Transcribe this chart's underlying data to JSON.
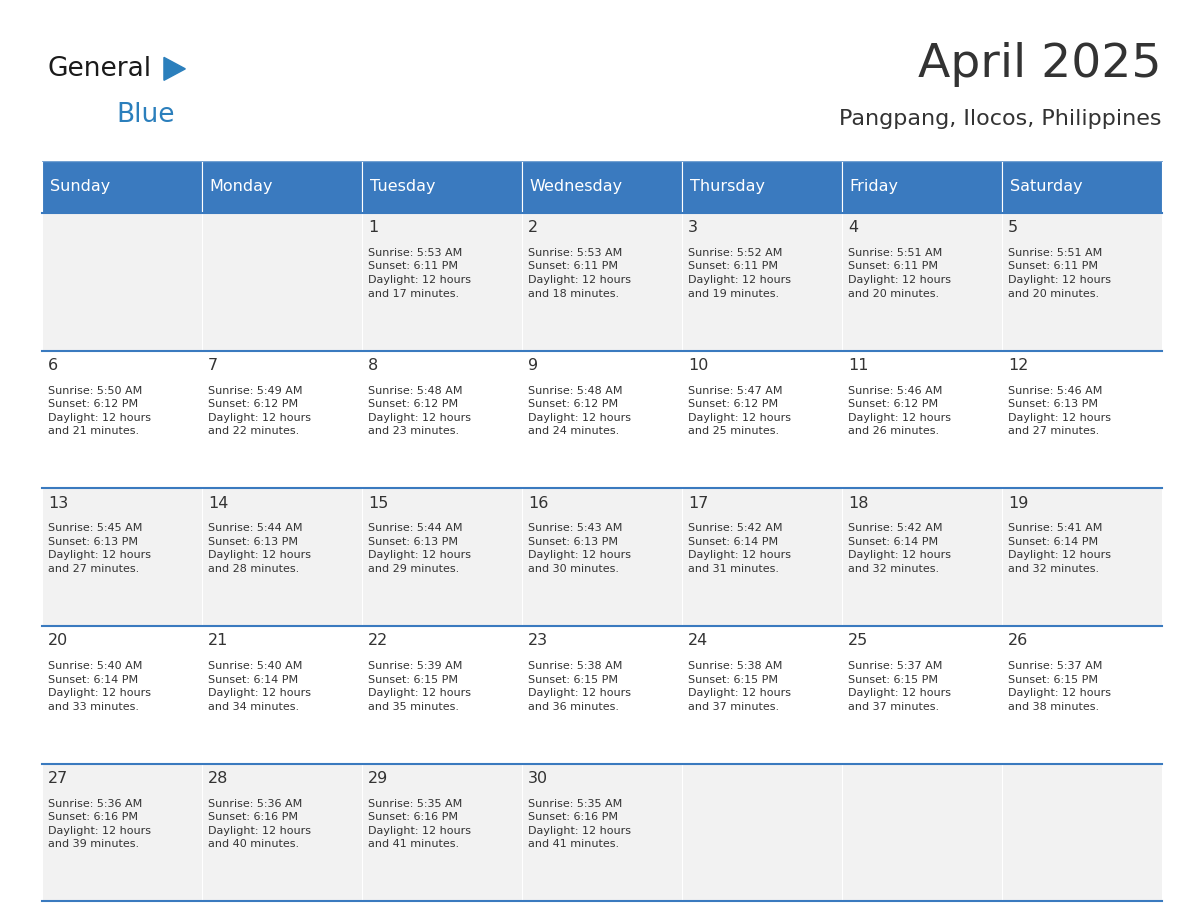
{
  "title": "April 2025",
  "subtitle": "Pangpang, Ilocos, Philippines",
  "header_bg_color": "#3a7abf",
  "header_text_color": "#ffffff",
  "cell_bg_odd": "#f2f2f2",
  "cell_bg_even": "#ffffff",
  "text_color": "#333333",
  "days_of_week": [
    "Sunday",
    "Monday",
    "Tuesday",
    "Wednesday",
    "Thursday",
    "Friday",
    "Saturday"
  ],
  "calendar": [
    [
      {
        "day": "",
        "info": ""
      },
      {
        "day": "",
        "info": ""
      },
      {
        "day": "1",
        "info": "Sunrise: 5:53 AM\nSunset: 6:11 PM\nDaylight: 12 hours\nand 17 minutes."
      },
      {
        "day": "2",
        "info": "Sunrise: 5:53 AM\nSunset: 6:11 PM\nDaylight: 12 hours\nand 18 minutes."
      },
      {
        "day": "3",
        "info": "Sunrise: 5:52 AM\nSunset: 6:11 PM\nDaylight: 12 hours\nand 19 minutes."
      },
      {
        "day": "4",
        "info": "Sunrise: 5:51 AM\nSunset: 6:11 PM\nDaylight: 12 hours\nand 20 minutes."
      },
      {
        "day": "5",
        "info": "Sunrise: 5:51 AM\nSunset: 6:11 PM\nDaylight: 12 hours\nand 20 minutes."
      }
    ],
    [
      {
        "day": "6",
        "info": "Sunrise: 5:50 AM\nSunset: 6:12 PM\nDaylight: 12 hours\nand 21 minutes."
      },
      {
        "day": "7",
        "info": "Sunrise: 5:49 AM\nSunset: 6:12 PM\nDaylight: 12 hours\nand 22 minutes."
      },
      {
        "day": "8",
        "info": "Sunrise: 5:48 AM\nSunset: 6:12 PM\nDaylight: 12 hours\nand 23 minutes."
      },
      {
        "day": "9",
        "info": "Sunrise: 5:48 AM\nSunset: 6:12 PM\nDaylight: 12 hours\nand 24 minutes."
      },
      {
        "day": "10",
        "info": "Sunrise: 5:47 AM\nSunset: 6:12 PM\nDaylight: 12 hours\nand 25 minutes."
      },
      {
        "day": "11",
        "info": "Sunrise: 5:46 AM\nSunset: 6:12 PM\nDaylight: 12 hours\nand 26 minutes."
      },
      {
        "day": "12",
        "info": "Sunrise: 5:46 AM\nSunset: 6:13 PM\nDaylight: 12 hours\nand 27 minutes."
      }
    ],
    [
      {
        "day": "13",
        "info": "Sunrise: 5:45 AM\nSunset: 6:13 PM\nDaylight: 12 hours\nand 27 minutes."
      },
      {
        "day": "14",
        "info": "Sunrise: 5:44 AM\nSunset: 6:13 PM\nDaylight: 12 hours\nand 28 minutes."
      },
      {
        "day": "15",
        "info": "Sunrise: 5:44 AM\nSunset: 6:13 PM\nDaylight: 12 hours\nand 29 minutes."
      },
      {
        "day": "16",
        "info": "Sunrise: 5:43 AM\nSunset: 6:13 PM\nDaylight: 12 hours\nand 30 minutes."
      },
      {
        "day": "17",
        "info": "Sunrise: 5:42 AM\nSunset: 6:14 PM\nDaylight: 12 hours\nand 31 minutes."
      },
      {
        "day": "18",
        "info": "Sunrise: 5:42 AM\nSunset: 6:14 PM\nDaylight: 12 hours\nand 32 minutes."
      },
      {
        "day": "19",
        "info": "Sunrise: 5:41 AM\nSunset: 6:14 PM\nDaylight: 12 hours\nand 32 minutes."
      }
    ],
    [
      {
        "day": "20",
        "info": "Sunrise: 5:40 AM\nSunset: 6:14 PM\nDaylight: 12 hours\nand 33 minutes."
      },
      {
        "day": "21",
        "info": "Sunrise: 5:40 AM\nSunset: 6:14 PM\nDaylight: 12 hours\nand 34 minutes."
      },
      {
        "day": "22",
        "info": "Sunrise: 5:39 AM\nSunset: 6:15 PM\nDaylight: 12 hours\nand 35 minutes."
      },
      {
        "day": "23",
        "info": "Sunrise: 5:38 AM\nSunset: 6:15 PM\nDaylight: 12 hours\nand 36 minutes."
      },
      {
        "day": "24",
        "info": "Sunrise: 5:38 AM\nSunset: 6:15 PM\nDaylight: 12 hours\nand 37 minutes."
      },
      {
        "day": "25",
        "info": "Sunrise: 5:37 AM\nSunset: 6:15 PM\nDaylight: 12 hours\nand 37 minutes."
      },
      {
        "day": "26",
        "info": "Sunrise: 5:37 AM\nSunset: 6:15 PM\nDaylight: 12 hours\nand 38 minutes."
      }
    ],
    [
      {
        "day": "27",
        "info": "Sunrise: 5:36 AM\nSunset: 6:16 PM\nDaylight: 12 hours\nand 39 minutes."
      },
      {
        "day": "28",
        "info": "Sunrise: 5:36 AM\nSunset: 6:16 PM\nDaylight: 12 hours\nand 40 minutes."
      },
      {
        "day": "29",
        "info": "Sunrise: 5:35 AM\nSunset: 6:16 PM\nDaylight: 12 hours\nand 41 minutes."
      },
      {
        "day": "30",
        "info": "Sunrise: 5:35 AM\nSunset: 6:16 PM\nDaylight: 12 hours\nand 41 minutes."
      },
      {
        "day": "",
        "info": ""
      },
      {
        "day": "",
        "info": ""
      },
      {
        "day": "",
        "info": ""
      }
    ]
  ],
  "logo_color1": "#1a1a1a",
  "logo_color2": "#2b7fbc",
  "logo_triangle_color": "#2b7fbc",
  "divider_color": "#3a7abf",
  "fig_bg": "#ffffff"
}
